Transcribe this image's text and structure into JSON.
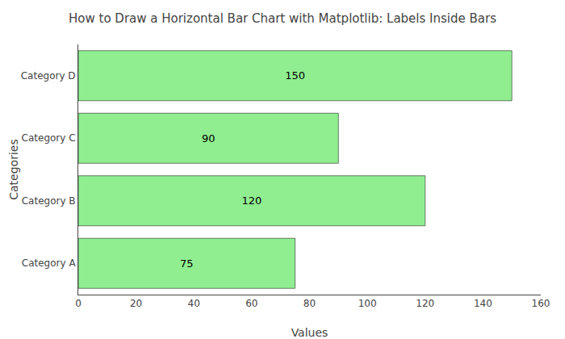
{
  "chart_data": {
    "type": "bar",
    "orientation": "horizontal",
    "title": "How to Draw a Horizontal Bar Chart with Matplotlib: Labels Inside Bars",
    "xlabel": "Values",
    "ylabel": "Categories",
    "categories": [
      "Category A",
      "Category B",
      "Category C",
      "Category D"
    ],
    "values": [
      75,
      120,
      90,
      150
    ],
    "color": "#90EE90",
    "xlim": [
      0,
      160
    ],
    "xticks": [
      0,
      20,
      40,
      60,
      80,
      100,
      120,
      140,
      160
    ],
    "grid": false,
    "data_labels": true
  }
}
